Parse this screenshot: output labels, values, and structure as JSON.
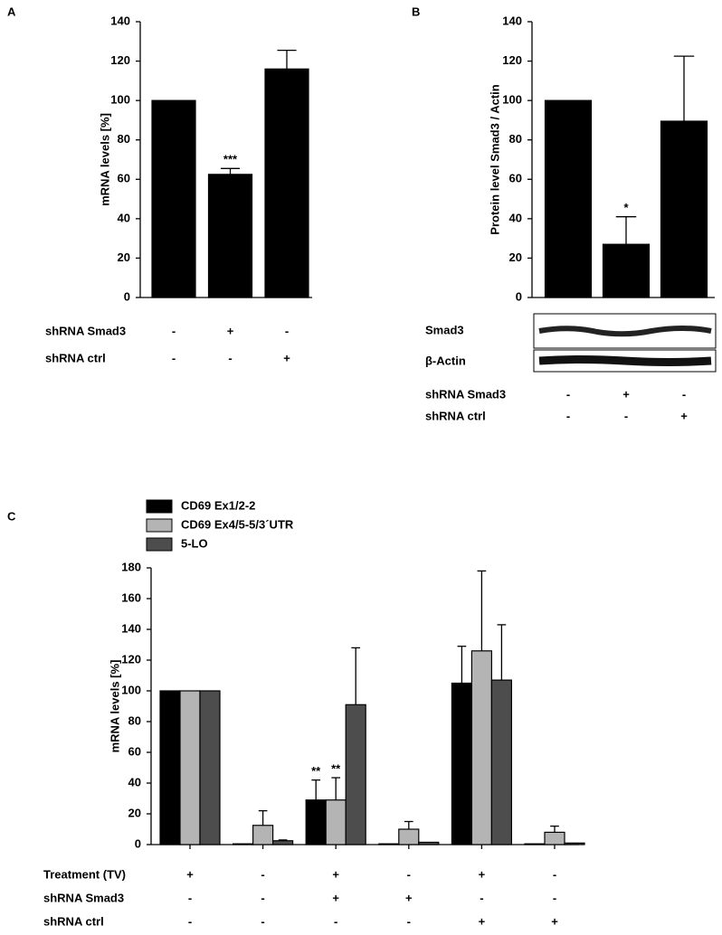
{
  "chart_data": [
    {
      "type": "bar",
      "panel": "A",
      "y_label": "mRNA levels [%]",
      "values": [
        100,
        62.5,
        116
      ],
      "errors": [
        null,
        3,
        9.5
      ],
      "significance": [
        null,
        "***",
        null
      ],
      "color": "#000000",
      "ylim": [
        0,
        140
      ],
      "yticks": [
        0,
        20,
        40,
        60,
        80,
        100,
        120,
        140
      ],
      "conditions": [
        {
          "label": "shRNA Smad3",
          "values": [
            "-",
            "+",
            "-"
          ]
        },
        {
          "label": "shRNA ctrl",
          "values": [
            "-",
            "-",
            "+"
          ]
        }
      ]
    },
    {
      "type": "bar",
      "panel": "B",
      "y_label": "Protein level Smad3  / Actin",
      "values": [
        100,
        27,
        89.5
      ],
      "errors": [
        null,
        14,
        33
      ],
      "significance": [
        null,
        "*",
        null
      ],
      "color": "#000000",
      "ylim": [
        0,
        140
      ],
      "yticks": [
        0,
        20,
        40,
        60,
        80,
        100,
        120,
        140
      ],
      "blot_labels": [
        "Smad3",
        "β-Actin"
      ],
      "conditions": [
        {
          "label": "shRNA Smad3",
          "values": [
            "-",
            "+",
            "-"
          ]
        },
        {
          "label": "shRNA ctrl",
          "values": [
            "-",
            "-",
            "+"
          ]
        }
      ]
    },
    {
      "type": "grouped_bar",
      "panel": "C",
      "y_label": "mRNA levels [%]",
      "series": [
        {
          "name": "CD69 Ex1/2-2",
          "color": "#000000",
          "values": [
            100,
            0.5,
            29,
            0.5,
            105,
            0.5
          ],
          "errors": [
            null,
            null,
            13,
            null,
            24,
            null
          ],
          "significance": [
            null,
            null,
            "**",
            null,
            null,
            null
          ]
        },
        {
          "name": "CD69 Ex4/5-5/3´UTR",
          "color": "#b4b4b4",
          "values": [
            100,
            12.5,
            29,
            10,
            126,
            8
          ],
          "errors": [
            null,
            9.5,
            14.5,
            5,
            52,
            4
          ],
          "significance": [
            null,
            null,
            "**",
            null,
            null,
            null
          ]
        },
        {
          "name": "5-LO",
          "color": "#4d4d4d",
          "values": [
            100,
            2.5,
            91,
            1.5,
            107,
            1
          ],
          "errors": [
            null,
            0.5,
            37,
            null,
            36,
            null
          ],
          "significance": [
            null,
            null,
            null,
            null,
            null,
            null
          ]
        }
      ],
      "ylim": [
        0,
        180
      ],
      "yticks": [
        0,
        20,
        40,
        60,
        80,
        100,
        120,
        140,
        160,
        180
      ],
      "conditions": [
        {
          "label": "Treatment (TV)",
          "values": [
            "+",
            "-",
            "+",
            "-",
            "+",
            "-"
          ]
        },
        {
          "label": "shRNA Smad3",
          "values": [
            "-",
            "-",
            "+",
            "+",
            "-",
            "-"
          ]
        },
        {
          "label": "shRNA ctrl",
          "values": [
            "-",
            "-",
            "-",
            "-",
            "+",
            "+"
          ]
        }
      ]
    }
  ]
}
